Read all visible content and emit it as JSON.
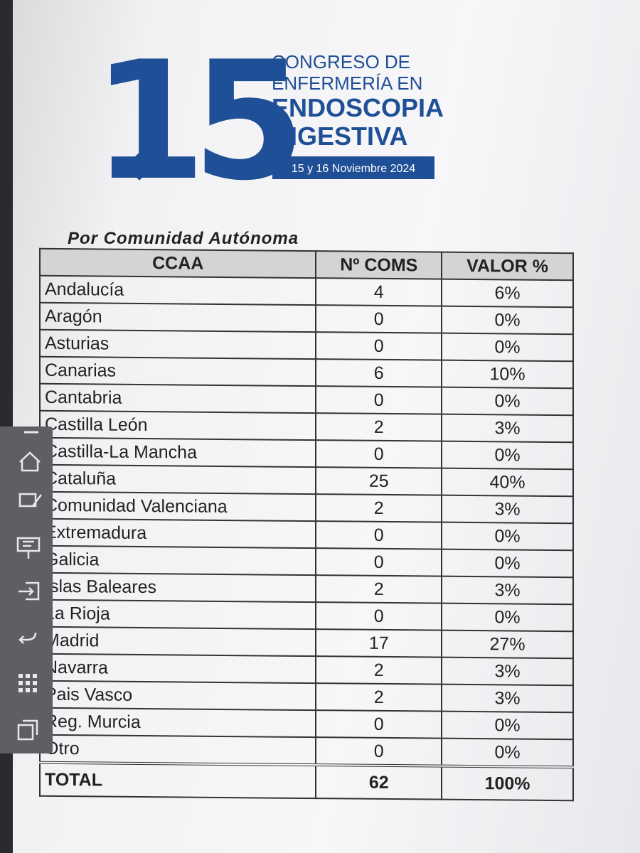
{
  "logo": {
    "number": "15",
    "lines": [
      "CONGRESO DE",
      "ENFERMERÍA EN",
      "ENDOSCOPIA",
      "DIGESTIVA"
    ],
    "date": "15 y 16 Noviembre 2024"
  },
  "table": {
    "title": "Por Comunidad Autónoma",
    "header": [
      "CCAA",
      "Nº COMS",
      "VALOR %"
    ],
    "rows": [
      [
        "Andalucía",
        "4",
        "6%"
      ],
      [
        "Aragón",
        "0",
        "0%"
      ],
      [
        "Asturias",
        "0",
        "0%"
      ],
      [
        "Canarias",
        "6",
        "10%"
      ],
      [
        "Cantabria",
        "0",
        "0%"
      ],
      [
        "Castilla León",
        "2",
        "3%"
      ],
      [
        "Castilla-La Mancha",
        "0",
        "0%"
      ],
      [
        "Cataluña",
        "25",
        "40%"
      ],
      [
        "Comunidad Valenciana",
        "2",
        "3%"
      ],
      [
        "Extremadura",
        "0",
        "0%"
      ],
      [
        "Galicia",
        "0",
        "0%"
      ],
      [
        "Islas Baleares",
        "2",
        "3%"
      ],
      [
        "La Rioja",
        "0",
        "0%"
      ],
      [
        "Madrid",
        "17",
        "27%"
      ],
      [
        "Navarra",
        "2",
        "3%"
      ],
      [
        "Pais Vasco",
        "2",
        "3%"
      ],
      [
        "Reg. Murcia",
        "0",
        "0%"
      ],
      [
        "Otro",
        "0",
        "0%"
      ]
    ],
    "total": [
      "TOTAL",
      "62",
      "100%"
    ]
  }
}
